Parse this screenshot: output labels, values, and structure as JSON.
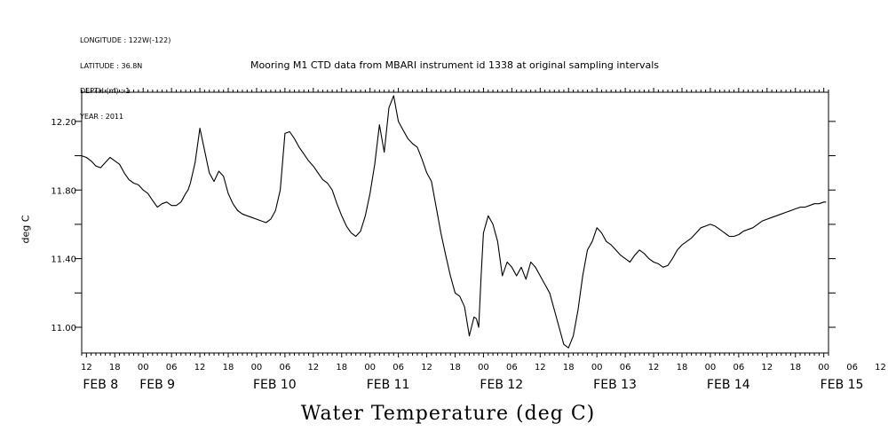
{
  "header": {
    "longitude": "LONGITUDE : 122W(-122)",
    "latitude": "LATITUDE : 36.8N",
    "depth": "DEPTH (m) : 1",
    "year": "YEAR : 2011"
  },
  "chart_data": {
    "type": "line",
    "title": "Mooring M1 CTD data from MBARI instrument id 1338 at original sampling intervals",
    "variable_title": "Water Temperature (deg C)",
    "ylabel": "deg C",
    "xlabel": "",
    "x_units": "hours since FEB 8 00:00, 2011",
    "xlim": [
      11,
      94.5
    ],
    "ylim": [
      10.85,
      12.37
    ],
    "y_ticks": [
      11.0,
      11.4,
      11.8,
      12.2
    ],
    "y_tick_labels": [
      "11.00",
      "11.40",
      "11.80",
      "12.20"
    ],
    "x_hour_ticks": [
      12,
      18,
      0,
      6,
      12,
      18,
      0,
      6,
      12,
      18,
      0,
      6,
      12,
      18,
      0,
      6,
      12,
      18,
      0,
      6,
      12,
      18,
      0,
      6,
      12,
      18,
      0,
      6,
      12,
      18,
      0,
      6
    ],
    "x_day_labels": [
      {
        "label": "FEB  8",
        "x": 12
      },
      {
        "label": "FEB  9",
        "x": 24
      },
      {
        "label": "FEB 10",
        "x": 48
      },
      {
        "label": "FEB 11",
        "x": 72
      },
      {
        "label": "FEB 12",
        "x": 96
      },
      {
        "label": "FEB 13",
        "x": 120
      },
      {
        "label": "FEB 14",
        "x": 144
      },
      {
        "label": "FEB 15",
        "x": 168
      }
    ],
    "grid": false,
    "series": [
      {
        "name": "",
        "x": [
          11.0,
          12.0,
          13.0,
          14.0,
          15.0,
          16.0,
          17.0,
          18.0,
          19.0,
          20.0,
          21.0,
          22.0,
          23.0,
          24.0,
          25.0,
          26.0,
          27.0,
          28.0,
          29.0,
          30.0,
          31.0,
          32.0,
          33.0,
          33.5,
          34.0,
          35.0,
          36.0,
          37.0,
          38.0,
          39.0,
          40.0,
          41.0,
          42.0,
          43.0,
          44.0,
          45.0,
          46.0,
          47.0,
          48.0,
          49.0,
          50.0,
          51.0,
          52.0,
          53.0,
          54.0,
          55.0,
          56.0,
          57.0,
          58.0,
          59.0,
          60.0,
          61.0,
          62.0,
          63.0,
          64.0,
          65.0,
          66.0,
          67.0,
          68.0,
          69.0,
          70.0,
          71.0,
          72.0,
          73.0,
          74.0,
          75.0,
          76.0,
          77.0,
          78.0,
          79.0,
          80.0,
          81.0,
          82.0,
          83.0,
          84.0,
          85.0,
          86.0,
          87.0,
          88.0,
          89.0,
          90.0,
          91.0,
          92.0,
          93.0,
          94.0,
          94.5
        ],
        "y": [
          12.0,
          11.99,
          11.97,
          11.94,
          11.93,
          11.96,
          11.99,
          11.97,
          11.95,
          11.9,
          11.86,
          11.84,
          11.83,
          11.8,
          11.78,
          11.74,
          11.7,
          11.72,
          11.73,
          11.71,
          11.71,
          11.73,
          11.78,
          11.8,
          11.84,
          11.96,
          12.16,
          12.03,
          11.9,
          11.85,
          11.91,
          11.88,
          11.78,
          11.72,
          11.68,
          11.66,
          11.65,
          11.64,
          11.63,
          11.62,
          11.61,
          11.63,
          11.68,
          11.8,
          12.13,
          12.14,
          12.1,
          12.05,
          12.01,
          11.97,
          11.94,
          11.9,
          11.86,
          11.84,
          11.8,
          11.72,
          11.65,
          11.59,
          11.55,
          11.53,
          11.56,
          11.65,
          11.78,
          11.95,
          12.18,
          12.02,
          12.28,
          12.35,
          12.2,
          12.15,
          12.1,
          12.07,
          12.05,
          11.98,
          11.9,
          11.85,
          11.7,
          11.55,
          11.42,
          11.3,
          11.2,
          11.18,
          11.12,
          10.95,
          11.06,
          11.05
        ]
      },
      {
        "name": "",
        "x": [
          94.5,
          95.0,
          95.5,
          96.0,
          97.0,
          98.0,
          99.0,
          100.0,
          101.0,
          102.0,
          103.0,
          104.0,
          105.0,
          106.0,
          107.0,
          108.0,
          109.0,
          110.0,
          111.0,
          112.0,
          113.0,
          114.0,
          115.0,
          116.0,
          117.0,
          118.0,
          119.0,
          120.0,
          121.0,
          122.0,
          123.0,
          124.0,
          125.0,
          126.0,
          127.0,
          128.0,
          129.0,
          130.0,
          131.0,
          132.0,
          133.0,
          134.0,
          135.0,
          136.0,
          137.0,
          138.0,
          139.0,
          140.0,
          141.0,
          142.0,
          143.0,
          144.0,
          145.0,
          146.0,
          147.0,
          148.0,
          149.0,
          150.0,
          151.0,
          152.0,
          153.0,
          154.0,
          155.0,
          156.0,
          157.0,
          158.0,
          159.0,
          160.0,
          161.0,
          162.0,
          163.0,
          164.0,
          165.0,
          166.0,
          167.0,
          168.0,
          168.5
        ],
        "y": [
          11.05,
          11.0,
          11.3,
          11.55,
          11.65,
          11.6,
          11.5,
          11.3,
          11.38,
          11.35,
          11.3,
          11.35,
          11.28,
          11.38,
          11.35,
          11.3,
          11.25,
          11.2,
          11.1,
          11.0,
          10.9,
          10.88,
          10.95,
          11.1,
          11.3,
          11.45,
          11.5,
          11.58,
          11.55,
          11.5,
          11.48,
          11.45,
          11.42,
          11.4,
          11.38,
          11.42,
          11.45,
          11.43,
          11.4,
          11.38,
          11.37,
          11.35,
          11.36,
          11.4,
          11.45,
          11.48,
          11.5,
          11.52,
          11.55,
          11.58,
          11.59,
          11.6,
          11.59,
          11.57,
          11.55,
          11.53,
          11.53,
          11.54,
          11.56,
          11.57,
          11.58,
          11.6,
          11.62,
          11.63,
          11.64,
          11.65,
          11.66,
          11.67,
          11.68,
          11.69,
          11.7,
          11.7,
          11.71,
          11.72,
          11.72,
          11.73,
          11.73
        ]
      }
    ]
  }
}
